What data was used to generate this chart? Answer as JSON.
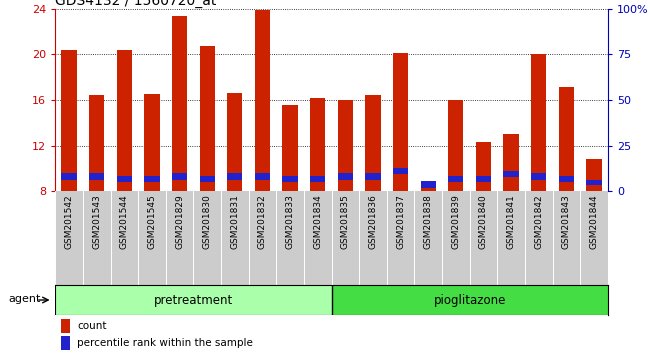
{
  "title": "GDS4132 / 1560720_at",
  "samples": [
    "GSM201542",
    "GSM201543",
    "GSM201544",
    "GSM201545",
    "GSM201829",
    "GSM201830",
    "GSM201831",
    "GSM201832",
    "GSM201833",
    "GSM201834",
    "GSM201835",
    "GSM201836",
    "GSM201837",
    "GSM201838",
    "GSM201839",
    "GSM201840",
    "GSM201841",
    "GSM201842",
    "GSM201843",
    "GSM201844"
  ],
  "red_tops": [
    20.4,
    16.4,
    20.4,
    16.5,
    23.4,
    20.7,
    16.6,
    23.9,
    15.6,
    16.2,
    16.0,
    16.4,
    20.1,
    8.3,
    16.0,
    12.3,
    13.0,
    20.0,
    17.1,
    10.8
  ],
  "blue_bottoms": [
    9.0,
    9.0,
    8.8,
    8.8,
    9.0,
    8.8,
    9.0,
    9.0,
    8.8,
    8.8,
    9.0,
    9.0,
    9.5,
    8.3,
    8.8,
    8.8,
    9.2,
    9.0,
    8.8,
    8.5
  ],
  "blue_heights": [
    0.55,
    0.55,
    0.5,
    0.5,
    0.55,
    0.55,
    0.55,
    0.55,
    0.5,
    0.55,
    0.55,
    0.55,
    0.55,
    0.55,
    0.55,
    0.55,
    0.55,
    0.55,
    0.5,
    0.5
  ],
  "bar_bottom": 8.0,
  "ylim_left": [
    8,
    24
  ],
  "ylim_right": [
    0,
    100
  ],
  "yticks_left": [
    8,
    12,
    16,
    20,
    24
  ],
  "yticks_right": [
    0,
    25,
    50,
    75,
    100
  ],
  "left_tick_color": "#cc0000",
  "right_tick_color": "#0000bb",
  "group1_label": "pretreatment",
  "group2_label": "pioglitazone",
  "group1_n": 10,
  "group2_n": 10,
  "agent_label": "agent",
  "legend_count_label": "count",
  "legend_pct_label": "percentile rank within the sample",
  "bar_color": "#cc2200",
  "blue_color": "#2222cc",
  "group1_bg": "#aaffaa",
  "group2_bg": "#44dd44",
  "tick_area_bg": "#cccccc",
  "bar_width": 0.55,
  "title_fontsize": 10,
  "tick_label_fontsize": 6.5,
  "group_label_fontsize": 8.5,
  "legend_fontsize": 7.5
}
